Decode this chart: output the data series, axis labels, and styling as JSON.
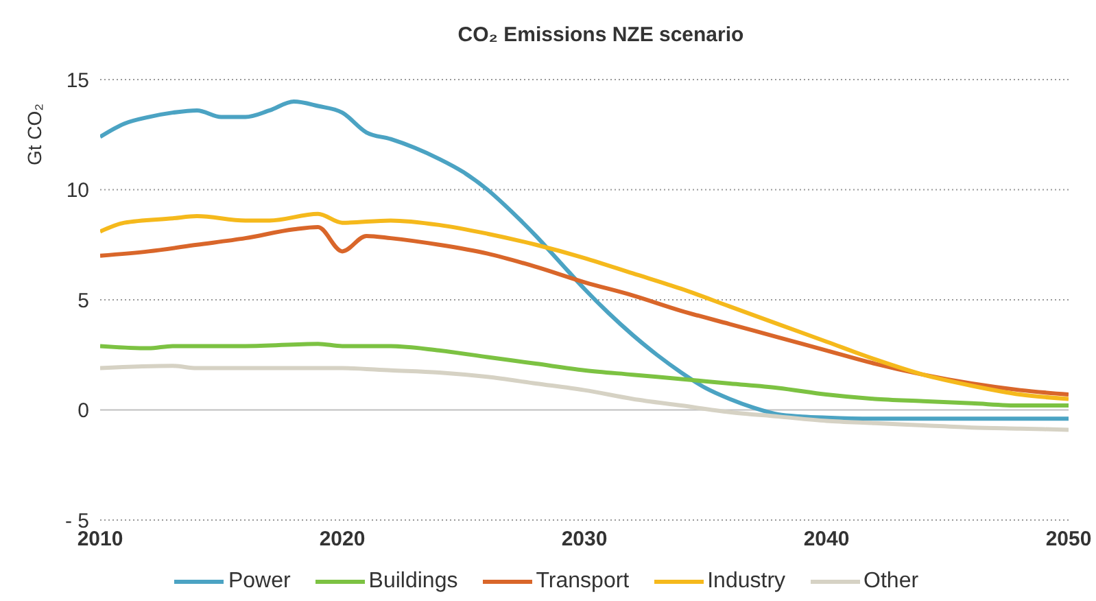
{
  "chart_data": {
    "type": "line",
    "title": "CO₂ Emissions NZE scenario",
    "ylabel": "Gt CO₂",
    "xlim": [
      2010,
      2050
    ],
    "xticks": [
      2010,
      2020,
      2030,
      2040,
      2050
    ],
    "ylim": [
      -5,
      15
    ],
    "yticks": [
      {
        "value": -5,
        "label": "- 5"
      },
      0,
      5,
      10,
      15
    ],
    "grid": "y",
    "legend": "bottom",
    "marker": "none",
    "line_style": "solid",
    "ref_lines": [
      {
        "axis": "y",
        "value": 0,
        "color": "#bfbfbf"
      }
    ],
    "series": [
      {
        "name": "Power",
        "color": "#4ba3c3",
        "x": [
          2010,
          2011,
          2012,
          2013,
          2014,
          2015,
          2016,
          2017,
          2018,
          2019,
          2020,
          2021,
          2022,
          2023,
          2024,
          2025,
          2026,
          2027,
          2028,
          2029,
          2030,
          2031,
          2032,
          2033,
          2034,
          2035,
          2036,
          2037,
          2038,
          2039,
          2040,
          2042,
          2044,
          2046,
          2048,
          2050
        ],
        "values": [
          12.4,
          13.0,
          13.3,
          13.5,
          13.6,
          13.3,
          13.3,
          13.6,
          14.0,
          13.8,
          13.5,
          12.6,
          12.3,
          11.9,
          11.4,
          10.8,
          10.0,
          9.0,
          7.9,
          6.7,
          5.5,
          4.4,
          3.4,
          2.5,
          1.7,
          1.0,
          0.5,
          0.1,
          -0.2,
          -0.3,
          -0.35,
          -0.4,
          -0.4,
          -0.4,
          -0.4,
          -0.4
        ]
      },
      {
        "name": "Buildings",
        "color": "#7cc242",
        "x": [
          2010,
          2012,
          2013,
          2016,
          2019,
          2020,
          2022,
          2024,
          2026,
          2028,
          2030,
          2032,
          2034,
          2036,
          2038,
          2040,
          2042,
          2044,
          2046,
          2048,
          2050
        ],
        "values": [
          2.9,
          2.8,
          2.9,
          2.9,
          3.0,
          2.9,
          2.9,
          2.7,
          2.4,
          2.1,
          1.8,
          1.6,
          1.4,
          1.2,
          1.0,
          0.7,
          0.5,
          0.4,
          0.3,
          0.2,
          0.2
        ]
      },
      {
        "name": "Transport",
        "color": "#d9662a",
        "x": [
          2010,
          2012,
          2014,
          2016,
          2018,
          2019,
          2020,
          2021,
          2022,
          2024,
          2026,
          2028,
          2030,
          2032,
          2034,
          2036,
          2038,
          2040,
          2042,
          2044,
          2046,
          2048,
          2050
        ],
        "values": [
          7.0,
          7.2,
          7.5,
          7.8,
          8.2,
          8.3,
          7.2,
          7.9,
          7.8,
          7.5,
          7.1,
          6.5,
          5.8,
          5.2,
          4.5,
          3.9,
          3.3,
          2.7,
          2.1,
          1.6,
          1.2,
          0.9,
          0.7
        ]
      },
      {
        "name": "Industry",
        "color": "#f5b91c",
        "x": [
          2010,
          2011,
          2013,
          2014,
          2016,
          2017,
          2019,
          2020,
          2022,
          2024,
          2026,
          2028,
          2030,
          2032,
          2034,
          2036,
          2038,
          2040,
          2042,
          2044,
          2046,
          2048,
          2050
        ],
        "values": [
          8.1,
          8.5,
          8.7,
          8.8,
          8.6,
          8.6,
          8.9,
          8.5,
          8.6,
          8.4,
          8.0,
          7.5,
          6.9,
          6.2,
          5.5,
          4.7,
          3.9,
          3.1,
          2.3,
          1.6,
          1.1,
          0.7,
          0.5
        ]
      },
      {
        "name": "Other",
        "color": "#d6d2c4",
        "x": [
          2010,
          2013,
          2014,
          2020,
          2022,
          2024,
          2026,
          2028,
          2030,
          2032,
          2034,
          2036,
          2038,
          2040,
          2042,
          2044,
          2046,
          2048,
          2050
        ],
        "values": [
          1.9,
          2.0,
          1.9,
          1.9,
          1.8,
          1.7,
          1.5,
          1.2,
          0.9,
          0.5,
          0.2,
          -0.1,
          -0.3,
          -0.5,
          -0.6,
          -0.7,
          -0.8,
          -0.85,
          -0.9
        ]
      }
    ]
  }
}
